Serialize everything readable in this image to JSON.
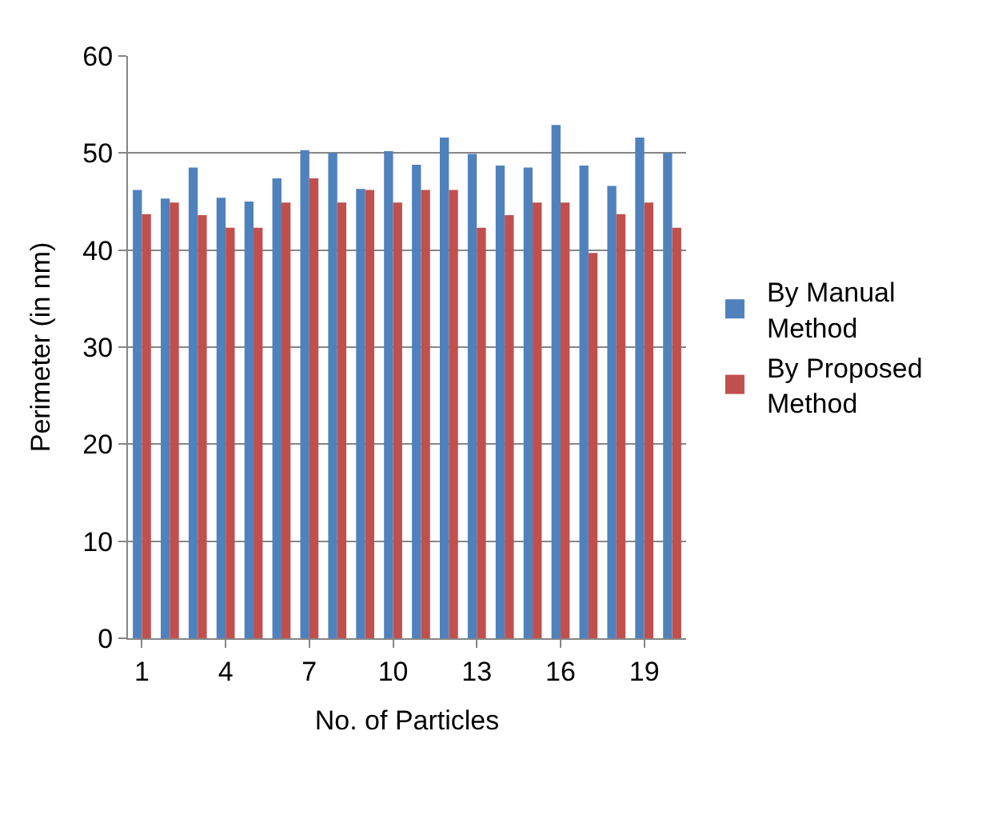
{
  "chart_data": {
    "type": "bar",
    "xlabel": "No. of Particles",
    "ylabel": "Perimeter (in nm)",
    "categories": [
      "1",
      null,
      null,
      "4",
      null,
      null,
      "7",
      null,
      null,
      "10",
      null,
      null,
      "13",
      null,
      null,
      "16",
      null,
      null,
      "19",
      null
    ],
    "series": [
      {
        "name": "By Manual Method",
        "color": "#4f81bd",
        "values": [
          46.2,
          45.3,
          48.5,
          45.4,
          45.0,
          47.4,
          50.3,
          50.0,
          46.3,
          50.2,
          48.8,
          51.6,
          49.9,
          48.7,
          48.5,
          52.9,
          48.7,
          46.6,
          51.6,
          50.0
        ]
      },
      {
        "name": "By Proposed Method",
        "color": "#c0504d",
        "values": [
          43.7,
          44.9,
          43.6,
          42.3,
          42.3,
          44.9,
          47.4,
          44.9,
          46.2,
          44.9,
          46.2,
          46.2,
          42.3,
          43.6,
          44.9,
          44.9,
          39.7,
          43.7,
          44.9,
          42.3
        ]
      }
    ],
    "ylim": [
      0,
      60
    ],
    "yticks": [
      0,
      10,
      20,
      30,
      40,
      50,
      60
    ],
    "grid": "y",
    "legend": "right"
  }
}
